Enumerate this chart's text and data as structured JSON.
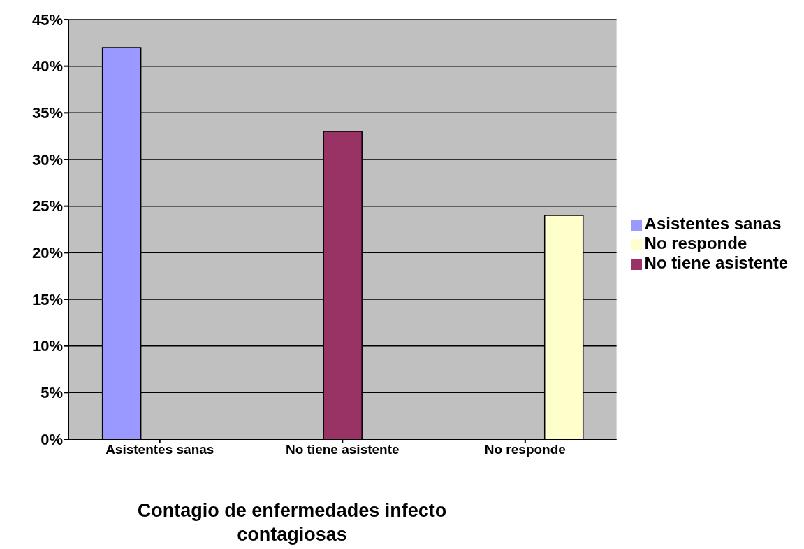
{
  "chart_data": {
    "type": "bar",
    "xlabel": "Contagio de enfermedades infecto contagiosas",
    "categories": [
      "Asistentes sanas",
      "No tiene asistente",
      "No responde"
    ],
    "series": [
      {
        "name": "Asistentes sanas",
        "color": "#9999ff",
        "values": [
          42,
          null,
          null
        ]
      },
      {
        "name": "No tiene asistente",
        "color": "#993366",
        "values": [
          null,
          33,
          null
        ]
      },
      {
        "name": "No responde",
        "color": "#ffffcc",
        "values": [
          null,
          null,
          24
        ]
      }
    ],
    "ylim": [
      0,
      45
    ],
    "yticks": [
      {
        "value": 0,
        "label": "0%"
      },
      {
        "value": 5,
        "label": "5%"
      },
      {
        "value": 10,
        "label": "10%"
      },
      {
        "value": 15,
        "label": "15%"
      },
      {
        "value": 20,
        "label": "20%"
      },
      {
        "value": 25,
        "label": "25%"
      },
      {
        "value": 30,
        "label": "30%"
      },
      {
        "value": 35,
        "label": "35%"
      },
      {
        "value": 40,
        "label": "40%"
      },
      {
        "value": 45,
        "label": "45%"
      }
    ],
    "grid": "y",
    "legend": "right"
  }
}
